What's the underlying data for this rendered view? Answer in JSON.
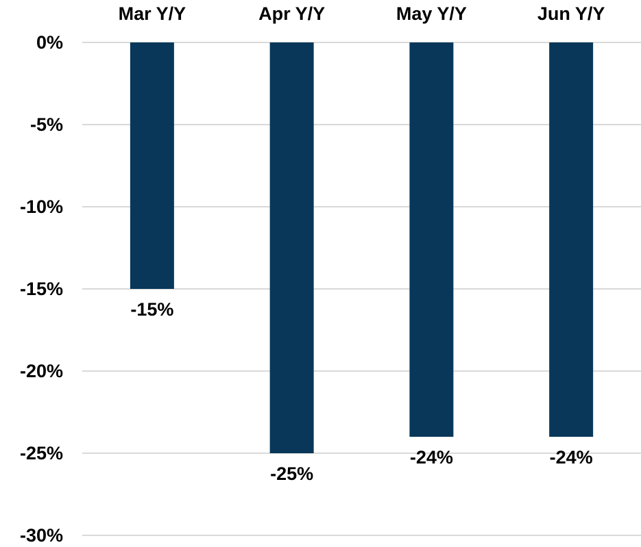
{
  "chart_data": {
    "type": "bar",
    "categories": [
      "Mar Y/Y",
      "Apr Y/Y",
      "May Y/Y",
      "Jun Y/Y"
    ],
    "values": [
      -15,
      -25,
      -24,
      -24
    ],
    "value_labels": [
      "-15%",
      "-25%",
      "-24%",
      "-24%"
    ],
    "color": "#08375a",
    "ylim": [
      -30,
      0
    ],
    "yticks": [
      {
        "value": 0,
        "label": "0%"
      },
      {
        "value": -5,
        "label": "-5%"
      },
      {
        "value": -10,
        "label": "-10%"
      },
      {
        "value": -15,
        "label": "-15%"
      },
      {
        "value": -20,
        "label": "-20%"
      },
      {
        "value": -25,
        "label": "-25%"
      },
      {
        "value": -30,
        "label": "-30%"
      }
    ],
    "grid": true
  }
}
